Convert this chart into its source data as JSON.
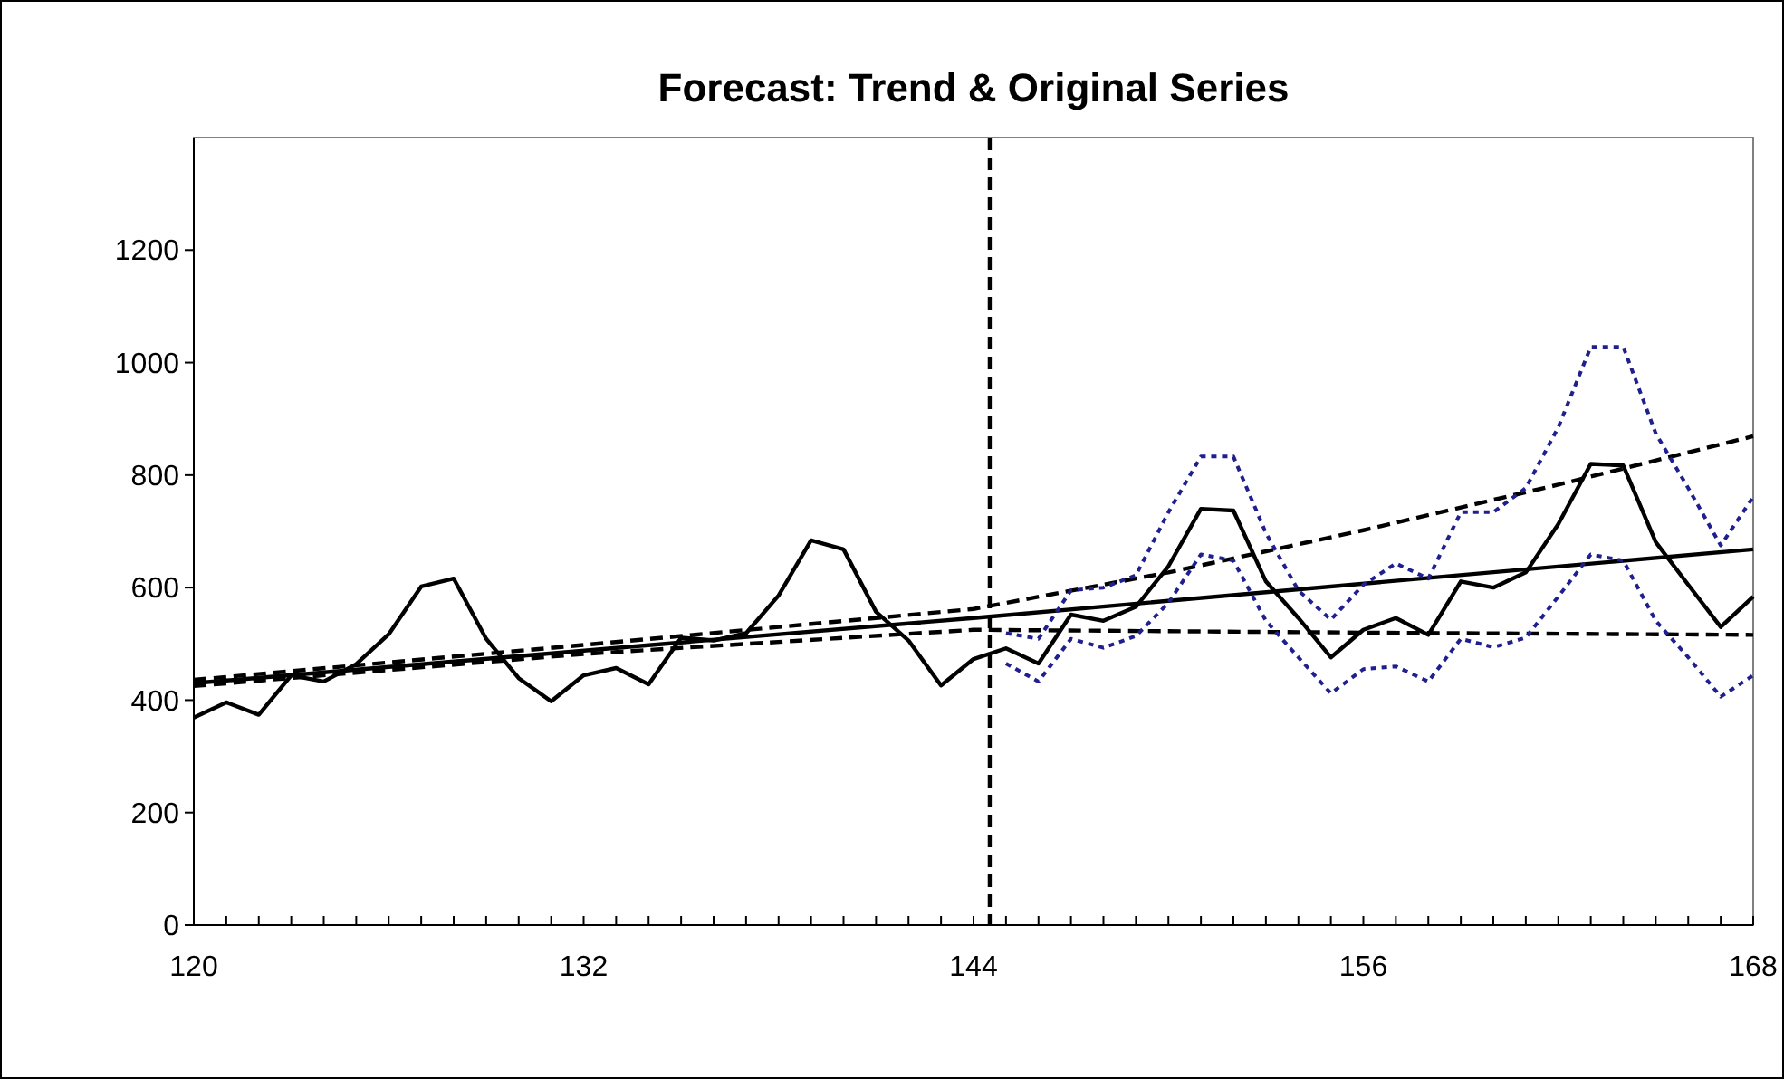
{
  "chart_data": {
    "type": "line",
    "title": "Forecast: Trend & Original Series",
    "x": [
      120,
      121,
      122,
      123,
      124,
      125,
      126,
      127,
      128,
      129,
      130,
      131,
      132,
      133,
      134,
      135,
      136,
      137,
      138,
      139,
      140,
      141,
      142,
      143,
      144,
      145,
      146,
      147,
      148,
      149,
      150,
      151,
      152,
      153,
      154,
      155,
      156,
      157,
      158,
      159,
      160,
      161,
      162,
      163,
      164,
      165,
      166,
      167,
      168
    ],
    "series": [
      {
        "color": "#000000",
        "line_style": "solid",
        "values": [
          369,
          396,
          374,
          444,
          433,
          464,
          517,
          602,
          616,
          509,
          439,
          398,
          444,
          457,
          428,
          511,
          506,
          519,
          586,
          684,
          668,
          557,
          506,
          426,
          473,
          492,
          465,
          552,
          541,
          566,
          638,
          740,
          737,
          611,
          546,
          476,
          525,
          546,
          516,
          611,
          600,
          627,
          713,
          820,
          817,
          681,
          605,
          530,
          584
        ]
      },
      {
        "color": "#000000",
        "line_style": "solid",
        "x": [
          120,
          144,
          168
        ],
        "values": [
          430,
          546,
          668
        ]
      },
      {
        "color": "#000000",
        "line_style": "dashed",
        "x": [
          120,
          132,
          144,
          150,
          156,
          162,
          168
        ],
        "values": [
          436,
          498,
          562,
          627,
          702,
          783,
          869
        ]
      },
      {
        "color": "#000000",
        "line_style": "dashed",
        "x": [
          120,
          132,
          144,
          156,
          168
        ],
        "values": [
          425,
          482,
          525,
          520,
          516
        ]
      },
      {
        "color": "#1f1f8f",
        "line_style": "dotted",
        "x": [
          145,
          146,
          147,
          148,
          149,
          150,
          151,
          152,
          153,
          154,
          155,
          156,
          157,
          158,
          159,
          160,
          161,
          162,
          163,
          164,
          165,
          166,
          167,
          168
        ],
        "values": [
          519,
          509,
          595,
          600,
          622,
          734,
          833,
          833,
          697,
          595,
          543,
          605,
          643,
          616,
          734,
          734,
          777,
          885,
          1028,
          1028,
          874,
          777,
          675,
          761
        ]
      },
      {
        "color": "#1f1f8f",
        "line_style": "dotted",
        "x": [
          145,
          146,
          147,
          148,
          149,
          150,
          151,
          152,
          153,
          154,
          155,
          156,
          157,
          158,
          159,
          160,
          161,
          162,
          163,
          164,
          165,
          166,
          167,
          168
        ],
        "values": [
          465,
          433,
          509,
          493,
          514,
          573,
          659,
          648,
          541,
          476,
          412,
          455,
          460,
          433,
          509,
          494,
          511,
          584,
          659,
          648,
          541,
          476,
          406,
          444
        ]
      }
    ],
    "xlim": [
      120,
      168
    ],
    "xticks": [
      120,
      {
        "value": 121,
        "label": null
      },
      {
        "value": 122,
        "label": null
      },
      {
        "value": 123,
        "label": null
      },
      {
        "value": 124,
        "label": null
      },
      {
        "value": 125,
        "label": null
      },
      {
        "value": 126,
        "label": null
      },
      {
        "value": 127,
        "label": null
      },
      {
        "value": 128,
        "label": null
      },
      {
        "value": 129,
        "label": null
      },
      {
        "value": 130,
        "label": null
      },
      {
        "value": 131,
        "label": null
      },
      132,
      {
        "value": 133,
        "label": null
      },
      {
        "value": 134,
        "label": null
      },
      {
        "value": 135,
        "label": null
      },
      {
        "value": 136,
        "label": null
      },
      {
        "value": 137,
        "label": null
      },
      {
        "value": 138,
        "label": null
      },
      {
        "value": 139,
        "label": null
      },
      {
        "value": 140,
        "label": null
      },
      {
        "value": 141,
        "label": null
      },
      {
        "value": 142,
        "label": null
      },
      {
        "value": 143,
        "label": null
      },
      144,
      {
        "value": 145,
        "label": null
      },
      {
        "value": 146,
        "label": null
      },
      {
        "value": 147,
        "label": null
      },
      {
        "value": 148,
        "label": null
      },
      {
        "value": 149,
        "label": null
      },
      {
        "value": 150,
        "label": null
      },
      {
        "value": 151,
        "label": null
      },
      {
        "value": 152,
        "label": null
      },
      {
        "value": 153,
        "label": null
      },
      {
        "value": 154,
        "label": null
      },
      {
        "value": 155,
        "label": null
      },
      156,
      {
        "value": 157,
        "label": null
      },
      {
        "value": 158,
        "label": null
      },
      {
        "value": 159,
        "label": null
      },
      {
        "value": 160,
        "label": null
      },
      {
        "value": 161,
        "label": null
      },
      {
        "value": 162,
        "label": null
      },
      {
        "value": 163,
        "label": null
      },
      {
        "value": 164,
        "label": null
      },
      {
        "value": 165,
        "label": null
      },
      {
        "value": 166,
        "label": null
      },
      {
        "value": 167,
        "label": null
      },
      168
    ],
    "ylim": [
      0,
      1400
    ],
    "yticks": [
      0,
      200,
      400,
      600,
      800,
      1000,
      1200
    ],
    "ref_lines": [
      {
        "axis": "x",
        "value": 144.5,
        "color": "#000000",
        "line_style": "dashed"
      }
    ],
    "grid": false,
    "marker": "none"
  }
}
